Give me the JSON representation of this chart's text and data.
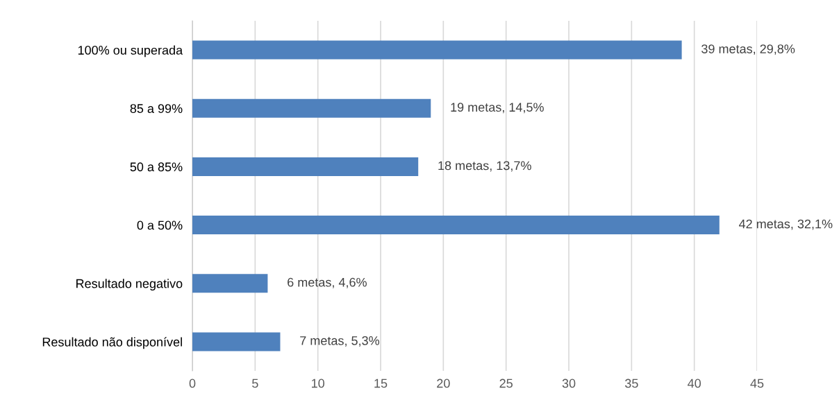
{
  "chart_data": {
    "type": "bar",
    "orientation": "horizontal",
    "categories": [
      "100% ou superada",
      "85 a 99%",
      "50 a 85%",
      "0 a 50%",
      "Resultado negativo",
      "Resultado não disponível"
    ],
    "values": [
      39,
      19,
      18,
      42,
      6,
      7
    ],
    "value_labels": [
      "39 metas, 29,8%",
      "19 metas, 14,5%",
      "18 metas, 13,7%",
      "42 metas, 32,1%",
      "6 metas, 4,6%",
      "7 metas, 5,3%"
    ],
    "color": "#4f81bd",
    "xlim": [
      0,
      45
    ],
    "xticks": [
      0,
      5,
      10,
      15,
      20,
      25,
      30,
      35,
      40,
      45
    ],
    "grid": "x",
    "legend": false
  }
}
